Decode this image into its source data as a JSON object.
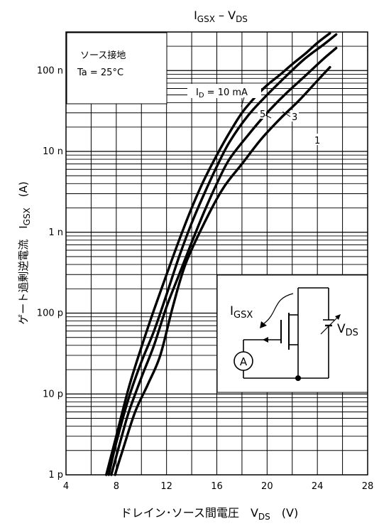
{
  "chart_data": {
    "type": "line",
    "title_parts": [
      "I",
      "GSX",
      " – V",
      "DS"
    ],
    "xlabel_parts": [
      "ドレイン･ソース間電圧　V",
      "DS",
      "　(V)"
    ],
    "ylabel_parts": [
      "ゲート過剰逆電流　I",
      "GSX",
      "　(A)"
    ],
    "x_ticks": [
      4,
      8,
      12,
      16,
      20,
      24,
      28
    ],
    "y_ticks": [
      {
        "value": 1e-12,
        "label": "1 p"
      },
      {
        "value": 1e-11,
        "label": "10 p"
      },
      {
        "value": 1e-10,
        "label": "100 p"
      },
      {
        "value": 1e-09,
        "label": "1 n"
      },
      {
        "value": 1e-08,
        "label": "10 n"
      },
      {
        "value": 1e-07,
        "label": "100 n"
      }
    ],
    "xlim": [
      4,
      28
    ],
    "ylim": [
      1e-12,
      3e-07
    ],
    "y_scale": "log",
    "grid": true,
    "conditions": [
      "ソース接地",
      "Ta = 25°C"
    ],
    "id_label_parts": [
      "I",
      "D",
      " = 10 mA"
    ],
    "series": [
      {
        "name": "1",
        "x": [
          7.9,
          8.5,
          9.5,
          10.5,
          11.5,
          12.5,
          13.5,
          15,
          16.5,
          18,
          19.5,
          21,
          22.5,
          24,
          25
        ],
        "y": [
          1e-12,
          2e-12,
          6e-12,
          1.3e-11,
          3e-11,
          1.2e-10,
          4e-10,
          1.3e-09,
          3.5e-09,
          7e-09,
          1.4e-08,
          2.5e-08,
          4.2e-08,
          7.5e-08,
          1.1e-07
        ]
      },
      {
        "name": "3",
        "x": [
          7.6,
          8.3,
          9,
          10,
          11,
          12,
          13,
          14,
          15,
          16,
          17,
          18.5,
          20,
          21.5,
          23,
          24.5,
          25.5
        ],
        "y": [
          1e-12,
          2.5e-12,
          6e-12,
          1.6e-11,
          4e-11,
          1.2e-10,
          3e-10,
          7.5e-10,
          1.8e-09,
          4e-09,
          8e-09,
          1.6e-08,
          3e-08,
          5.2e-08,
          8.5e-08,
          1.4e-07,
          1.9e-07
        ]
      },
      {
        "name": "5",
        "x": [
          7.4,
          8,
          9,
          10,
          11,
          12,
          13,
          14,
          15,
          16,
          17,
          18.5,
          20,
          21.5,
          23,
          24.5,
          25.5
        ],
        "y": [
          1e-12,
          2.5e-12,
          9e-12,
          2.5e-11,
          6e-11,
          1.7e-10,
          5e-10,
          1.3e-09,
          3e-09,
          6.5e-09,
          1.3e-08,
          2.8e-08,
          5e-08,
          8.5e-08,
          1.4e-07,
          2.1e-07,
          2.8e-07
        ]
      },
      {
        "name": "10 mA",
        "x": [
          7.2,
          8,
          9,
          10,
          11,
          12,
          13,
          14,
          15,
          16,
          17,
          18,
          19,
          20,
          21,
          22,
          23,
          24,
          25
        ],
        "y": [
          1e-12,
          3e-12,
          1.2e-11,
          3.8e-11,
          1.1e-10,
          3e-10,
          8e-10,
          2e-09,
          4.5e-09,
          9e-09,
          1.7e-08,
          3e-08,
          4.6e-08,
          6.6e-08,
          8.8e-08,
          1.2e-07,
          1.6e-07,
          2.2e-07,
          2.9e-07
        ]
      }
    ],
    "curve_labels": [
      "5",
      "3",
      "1"
    ],
    "inset": {
      "label_i_parts": [
        "I",
        "GSX"
      ],
      "label_v_parts": [
        "V",
        "DS"
      ],
      "meter": "A"
    }
  }
}
